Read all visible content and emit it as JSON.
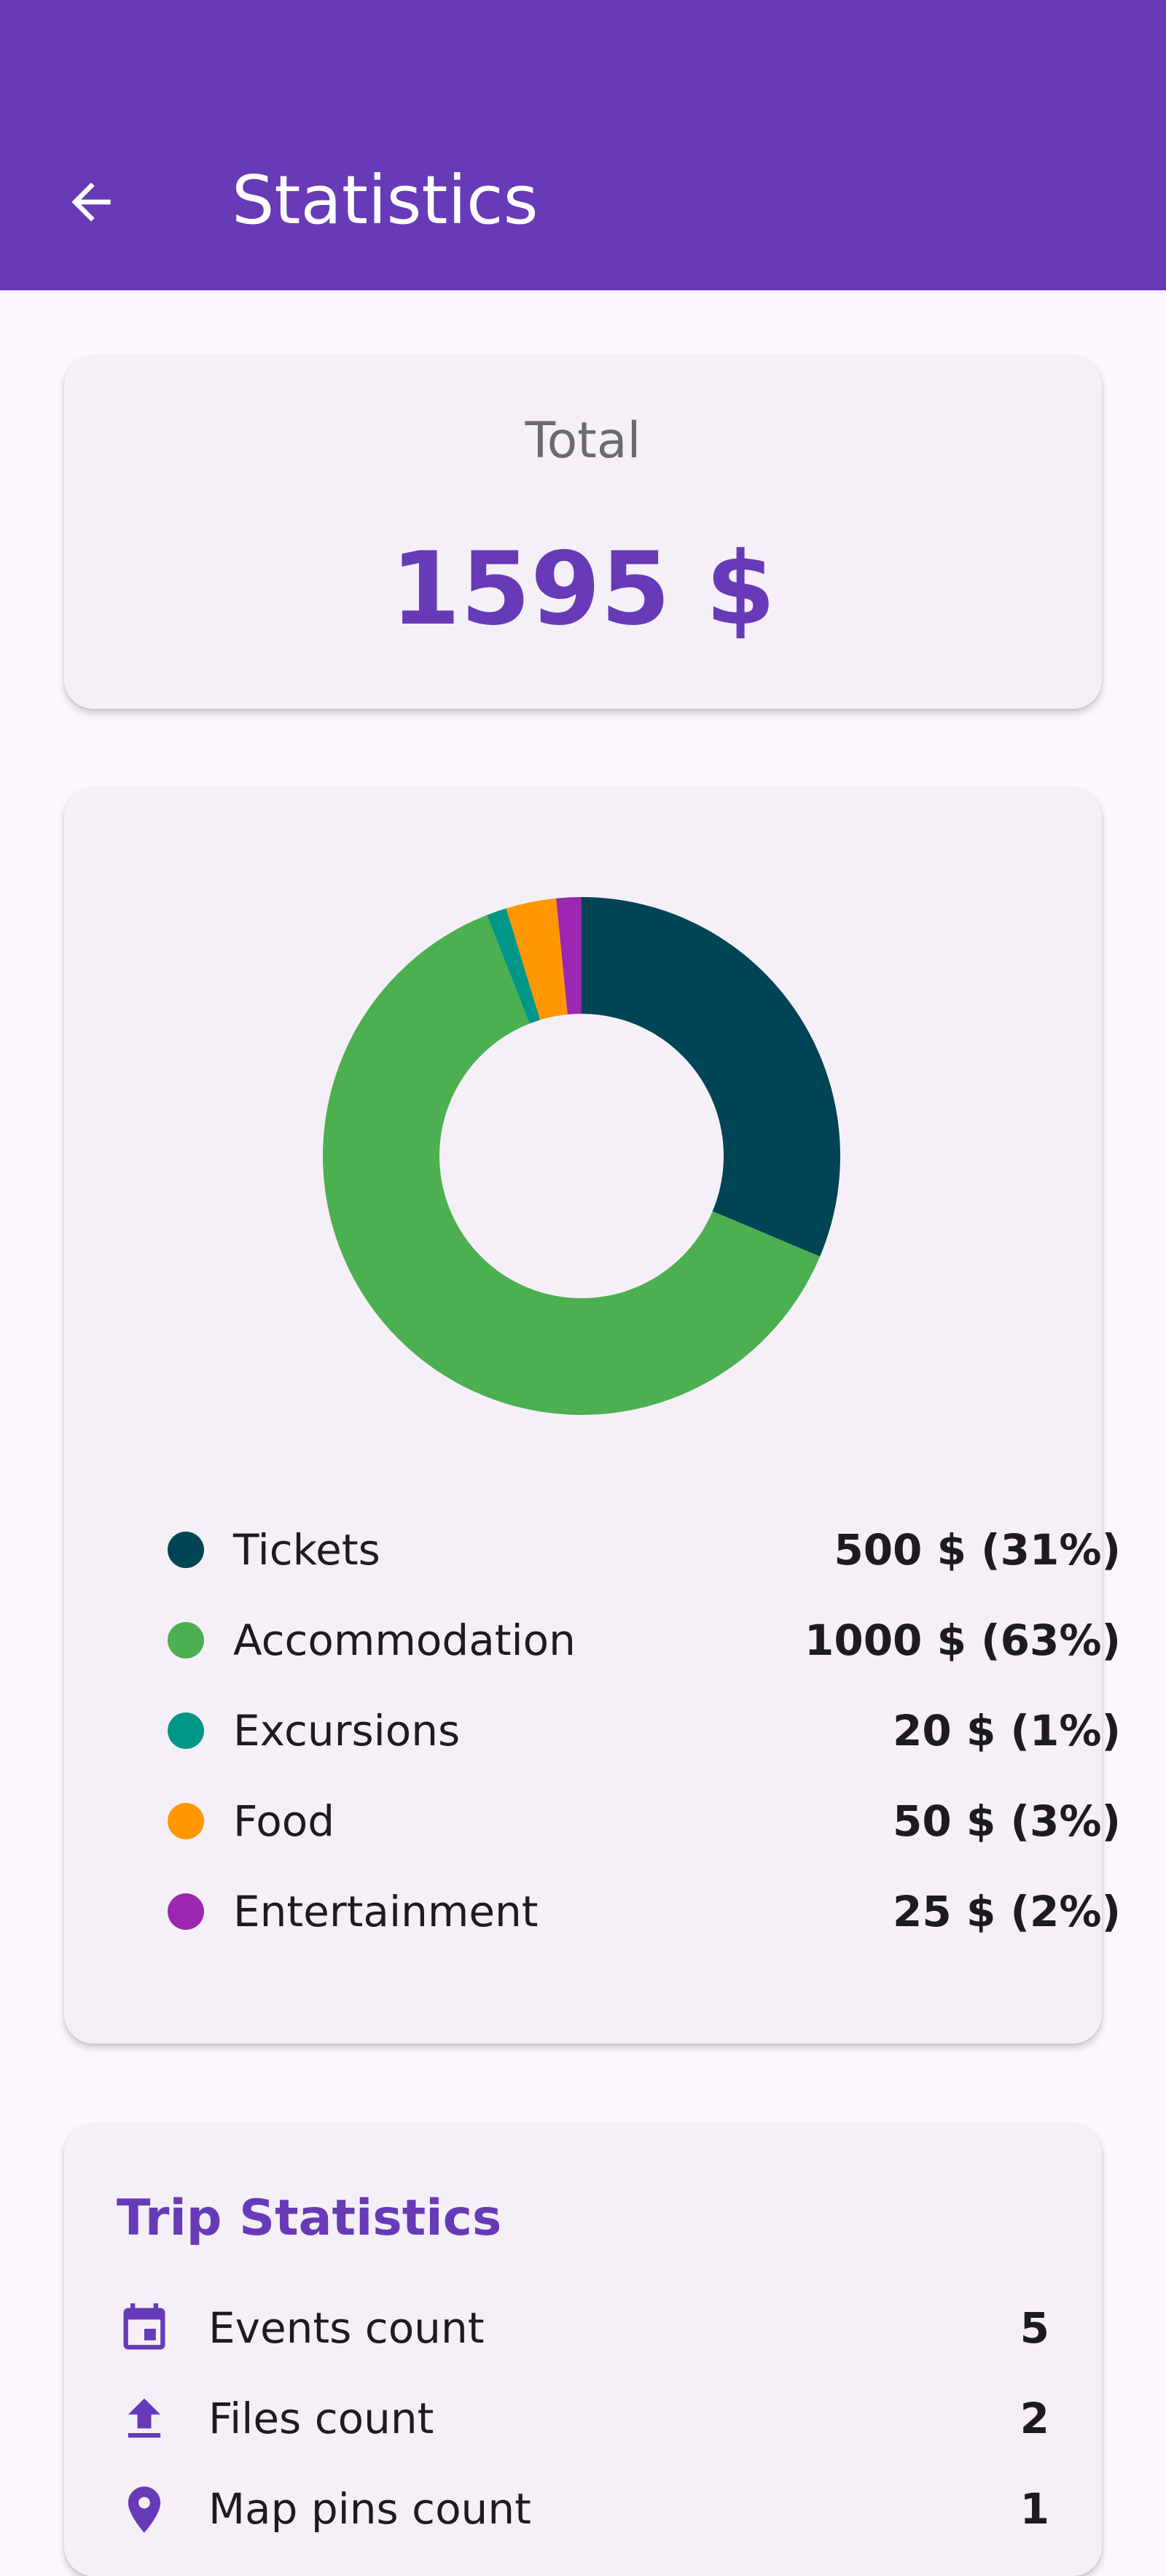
{
  "appbar": {
    "title": "Statistics",
    "back_icon": "arrow-back-icon",
    "color": "#673ab7"
  },
  "total": {
    "label": "Total",
    "value": "1595 $"
  },
  "chart_data": {
    "type": "pie",
    "donut": true,
    "categories": [
      "Tickets",
      "Accommodation",
      "Excursions",
      "Food",
      "Entertainment"
    ],
    "values": [
      500,
      1000,
      20,
      50,
      25
    ],
    "colors": [
      "#004455",
      "#4caf50",
      "#009688",
      "#ff9800",
      "#9c27b0"
    ],
    "legend_values": [
      "500 $ (31%)",
      "1000 $ (63%)",
      "20 $ (1%)",
      "50 $ (3%)",
      "25 $ (2%)"
    ],
    "legend_placement": "bottom"
  },
  "trip_statistics": {
    "title": "Trip Statistics",
    "rows": [
      {
        "label": "Events count",
        "value": "5",
        "icon": "calendar-icon"
      },
      {
        "label": "Files count",
        "value": "2",
        "icon": "upload-icon"
      },
      {
        "label": "Map pins count",
        "value": "1",
        "icon": "map-pin-icon"
      }
    ]
  }
}
